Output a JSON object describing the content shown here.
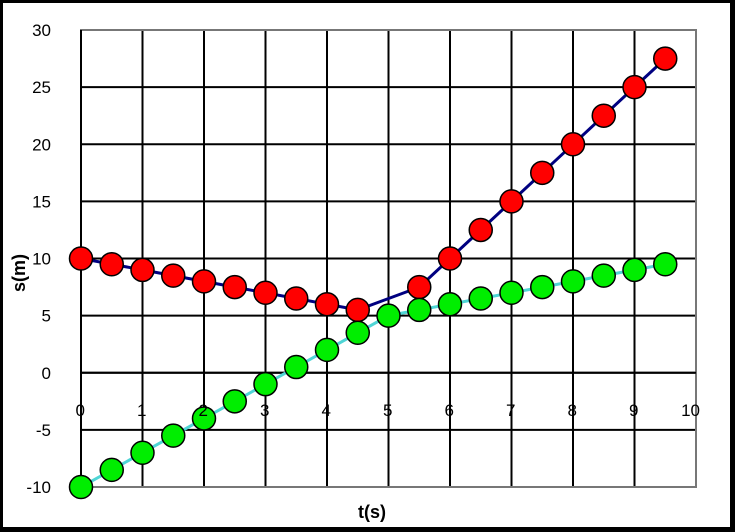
{
  "chart_data": {
    "type": "scatter",
    "title": "",
    "xlabel": "t(s)",
    "ylabel": "s(m)",
    "xlim": [
      0,
      10
    ],
    "ylim": [
      -10,
      30
    ],
    "grid": true,
    "x_tick_labels": [
      "0",
      "1",
      "2",
      "3",
      "4",
      "5",
      "6",
      "7",
      "8",
      "9",
      "10"
    ],
    "y_tick_labels": [
      "30",
      "25",
      "20",
      "15",
      "10",
      "5",
      "0",
      "-5",
      "-10"
    ],
    "series": [
      {
        "color": "#ff0000",
        "line_color": "#000080",
        "x": [
          0,
          0.5,
          1,
          1.5,
          2,
          2.5,
          3,
          3.5,
          4,
          4.5,
          5.5,
          6,
          6.5,
          7,
          7.5,
          8,
          8.5,
          9,
          9.5
        ],
        "y": [
          10,
          9.5,
          9,
          8.5,
          8,
          7.5,
          7,
          6.5,
          6,
          5.5,
          7.5,
          10,
          12.5,
          15,
          17.5,
          20,
          22.5,
          25,
          27.5
        ]
      },
      {
        "color": "#00ee00",
        "line_color": "#4fd5d5",
        "x": [
          0,
          0.5,
          1,
          1.5,
          2,
          2.5,
          3,
          3.5,
          4,
          4.5,
          5,
          5.5,
          6,
          6.5,
          7,
          7.5,
          8,
          8.5,
          9,
          9.5
        ],
        "y": [
          -10,
          -8.5,
          -7,
          -5.5,
          -4,
          -2.5,
          -1,
          0.5,
          2,
          3.5,
          5,
          5.5,
          6,
          6.5,
          7,
          7.5,
          8,
          8.5,
          9,
          9.5
        ]
      }
    ]
  }
}
